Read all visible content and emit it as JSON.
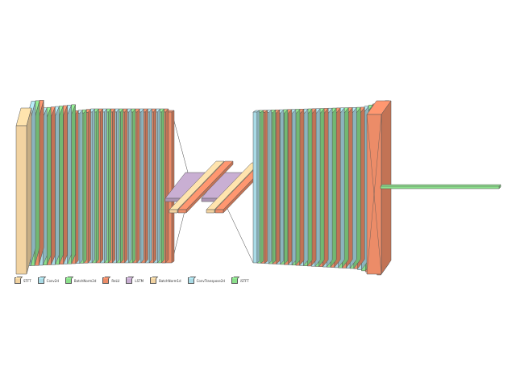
{
  "colors": {
    "stft": "#f2d3a1",
    "conv": "#a9dbe6",
    "batchnorm2d": "#8be08b",
    "relu": "#ec8c68",
    "lstm": "#c9afd3",
    "batchnorm1d": "#f2d3a1",
    "convtranspose": "#a9dbe6",
    "istft": "#8be08b"
  },
  "legend": [
    {
      "label": "STFT",
      "color_key": "stft"
    },
    {
      "label": "Conv2d",
      "color_key": "conv"
    },
    {
      "label": "BatchNorm2d",
      "color_key": "batchnorm2d"
    },
    {
      "label": "ReLU",
      "color_key": "relu"
    },
    {
      "label": "LSTM",
      "color_key": "lstm"
    },
    {
      "label": "BatchNorm1d",
      "color_key": "batchnorm1d"
    },
    {
      "label": "ConvTranspose2d",
      "color_key": "convtranspose"
    },
    {
      "label": "iSTFT",
      "color_key": "istft"
    }
  ],
  "encoder_sequence": [
    "stft",
    "conv",
    "batchnorm2d",
    "relu",
    "conv",
    "batchnorm2d",
    "relu",
    "conv",
    "batchnorm2d",
    "relu",
    "conv",
    "batchnorm2d",
    "relu",
    "conv",
    "batchnorm2d",
    "relu",
    "conv",
    "batchnorm2d",
    "relu",
    "conv",
    "batchnorm2d",
    "relu",
    "conv",
    "batchnorm2d",
    "relu",
    "conv",
    "batchnorm2d",
    "relu",
    "conv",
    "relu",
    "conv",
    "relu",
    "conv",
    "batchnorm2d",
    "relu"
  ],
  "bottleneck_sequence": [
    "lstm",
    "batchnorm1d",
    "relu",
    "lstm",
    "batchnorm1d",
    "relu"
  ],
  "decoder_sequence": [
    "convtranspose",
    "batchnorm2d",
    "relu",
    "convtranspose",
    "batchnorm2d",
    "relu",
    "convtranspose",
    "batchnorm2d",
    "relu",
    "convtranspose",
    "batchnorm2d",
    "relu",
    "convtranspose",
    "batchnorm2d",
    "relu",
    "convtranspose",
    "batchnorm2d",
    "relu",
    "convtranspose",
    "batchnorm2d",
    "relu",
    "convtranspose",
    "batchnorm2d",
    "relu",
    "convtranspose",
    "batchnorm2d",
    "relu",
    "convtranspose",
    "batchnorm2d",
    "relu",
    "convtranspose",
    "batchnorm2d",
    "relu"
  ],
  "output_block": "relu",
  "output_layer": "istft"
}
